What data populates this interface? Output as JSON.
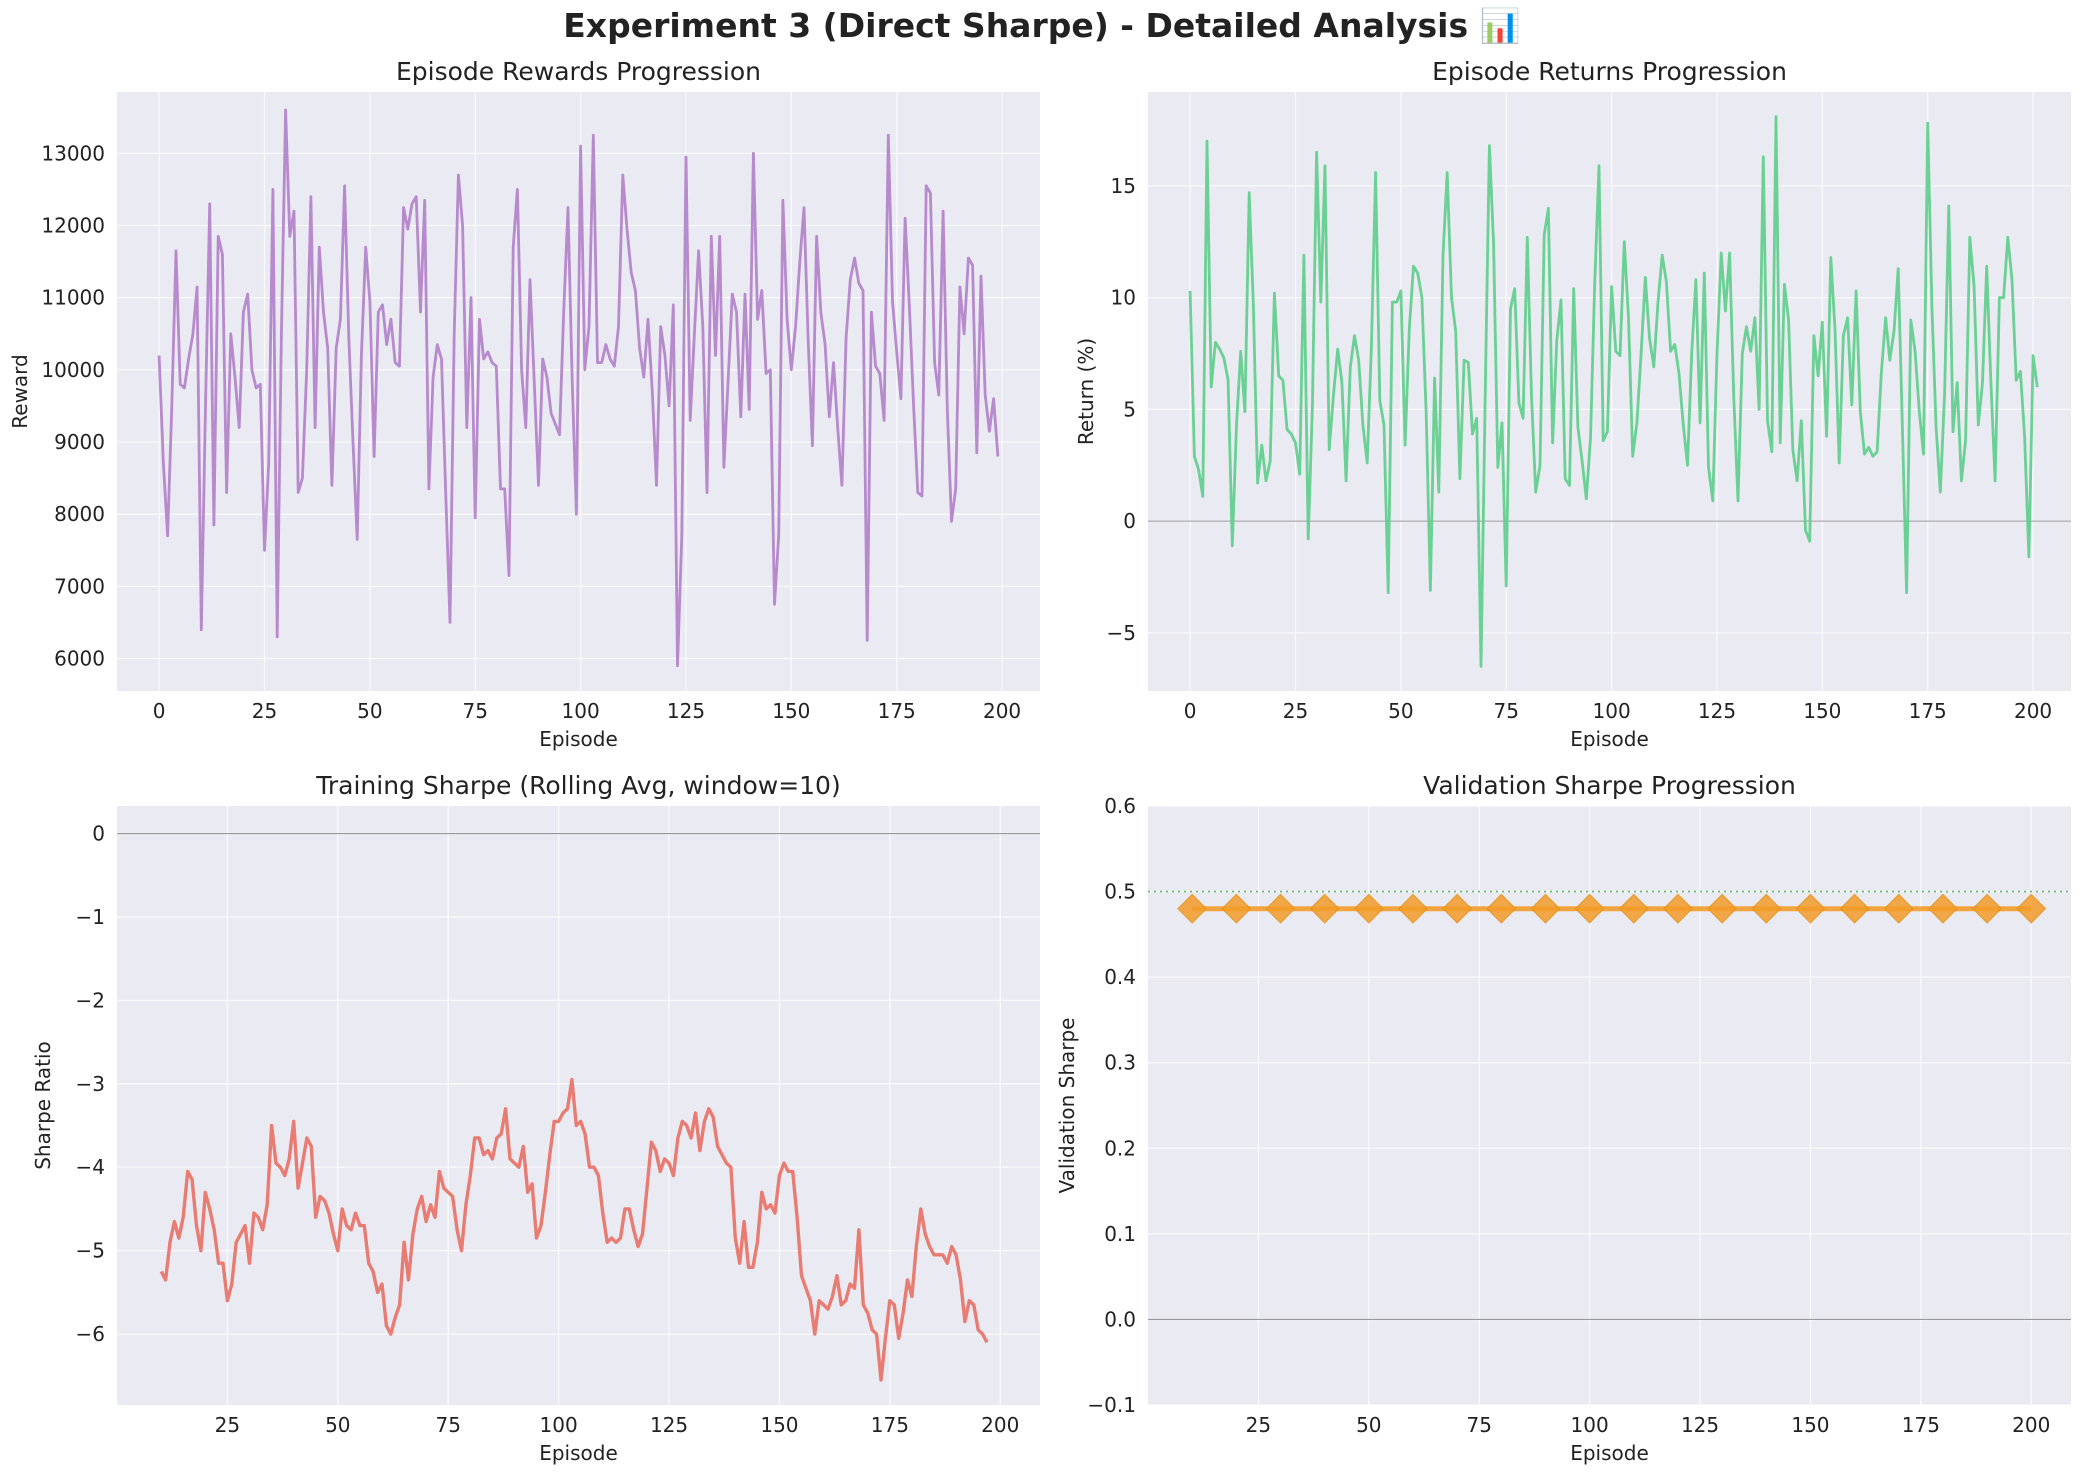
{
  "suptitle": "Experiment 3 (Direct Sharpe) - Detailed Analysis 📊",
  "chart_data": [
    {
      "type": "line",
      "title": "Episode Rewards Progression",
      "xlabel": "Episode",
      "ylabel": "Reward",
      "xlim": [
        -10,
        209
      ],
      "ylim": [
        5550,
        13850
      ],
      "xticks": [
        0,
        25,
        50,
        75,
        100,
        125,
        150,
        175,
        200
      ],
      "yticks": [
        6000,
        7000,
        8000,
        9000,
        10000,
        11000,
        12000,
        13000
      ],
      "grid": true,
      "color": "#b07fc8",
      "series": [
        {
          "x_start": 0,
          "x_step": 1,
          "values": [
            10200,
            8700,
            7700,
            9500,
            11650,
            9800,
            9750,
            10150,
            10500,
            11150,
            6400,
            9500,
            12300,
            7850,
            11850,
            11600,
            8300,
            10500,
            9900,
            9200,
            10800,
            11050,
            10000,
            9750,
            9800,
            7500,
            8700,
            12500,
            6300,
            10500,
            13600,
            11850,
            12200,
            8300,
            8500,
            10000,
            12400,
            9200,
            11700,
            10800,
            10300,
            8400,
            10300,
            10700,
            12550,
            10450,
            9000,
            7650,
            10200,
            11700,
            10950,
            8800,
            10800,
            10900,
            10350,
            10700,
            10100,
            10050,
            12250,
            11950,
            12300,
            12400,
            10800,
            12350,
            8350,
            9900,
            10350,
            10150,
            8300,
            6500,
            10500,
            12700,
            12000,
            9200,
            11000,
            7950,
            10700,
            10150,
            10250,
            10100,
            10050,
            8350,
            8350,
            7150,
            11700,
            12500,
            10000,
            9200,
            11250,
            9850,
            8400,
            10150,
            9900,
            9400,
            9250,
            9100,
            10800,
            12250,
            9850,
            8000,
            13100,
            10000,
            10600,
            13250,
            10100,
            10100,
            10350,
            10150,
            10050,
            10600,
            12700,
            11950,
            11350,
            11100,
            10300,
            9900,
            10700,
            9700,
            8400,
            10600,
            10200,
            9500,
            10900,
            5900,
            7700,
            12950,
            9300,
            10500,
            11650,
            10600,
            8300,
            11850,
            10200,
            11850,
            8650,
            9850,
            11050,
            10800,
            9350,
            11050,
            9450,
            13000,
            10700,
            11100,
            9950,
            10000,
            6750,
            7700,
            12350,
            10700,
            10000,
            10600,
            11500,
            12250,
            10400,
            8950,
            11850,
            10800,
            10350,
            9350,
            10100,
            9200,
            8400,
            10450,
            11250,
            11550,
            11200,
            11100,
            6250,
            10800,
            10050,
            9950,
            9300,
            13250,
            10950,
            10250,
            9600,
            12100,
            10900,
            9500,
            8300,
            8250,
            12550,
            12450,
            10100,
            9650,
            12200,
            9450,
            7900,
            8350,
            11150,
            10500,
            11550,
            11450,
            8850,
            11300,
            9650,
            9150,
            9600,
            8800
          ]
        }
      ]
    },
    {
      "type": "line",
      "title": "Episode Returns Progression",
      "xlabel": "Episode",
      "ylabel": "Return (%)",
      "xlim": [
        -10,
        209
      ],
      "ylim": [
        -7.6,
        19.2
      ],
      "xticks": [
        0,
        25,
        50,
        75,
        100,
        125,
        150,
        175,
        200
      ],
      "yticks": [
        -5,
        0,
        5,
        10,
        15
      ],
      "grid": true,
      "zero_line": true,
      "color": "#5ccd8a",
      "series": [
        {
          "x_start": 0,
          "x_step": 1,
          "values": [
            10.3,
            2.9,
            2.3,
            1.1,
            17.0,
            6.0,
            8.0,
            7.7,
            7.3,
            6.3,
            -1.1,
            4.3,
            7.6,
            4.9,
            14.7,
            9.6,
            1.7,
            3.4,
            1.8,
            2.7,
            10.2,
            6.5,
            6.3,
            4.1,
            3.9,
            3.5,
            2.1,
            11.9,
            -0.8,
            5.1,
            16.5,
            9.8,
            15.9,
            3.2,
            5.6,
            7.7,
            6.2,
            1.8,
            6.9,
            8.3,
            7.2,
            4.3,
            2.6,
            7.8,
            15.6,
            5.4,
            4.3,
            -3.2,
            9.8,
            9.8,
            10.3,
            3.4,
            8.6,
            11.4,
            11.1,
            10.0,
            4.8,
            -3.1,
            6.4,
            1.3,
            11.9,
            15.6,
            10.0,
            8.5,
            1.9,
            7.2,
            7.1,
            3.9,
            4.6,
            -6.5,
            5.6,
            16.8,
            12.4,
            2.4,
            4.4,
            -2.9,
            9.5,
            10.4,
            5.3,
            4.6,
            12.7,
            5.6,
            1.3,
            2.5,
            12.8,
            14.0,
            3.5,
            8.1,
            9.9,
            1.9,
            1.6,
            10.4,
            4.2,
            2.7,
            1.0,
            3.7,
            10.6,
            15.9,
            3.6,
            4.0,
            10.5,
            7.6,
            7.4,
            12.5,
            9.1,
            2.9,
            4.4,
            7.5,
            10.9,
            8.2,
            6.9,
            9.8,
            11.9,
            10.7,
            7.6,
            7.9,
            6.6,
            4.3,
            2.5,
            7.5,
            10.8,
            4.4,
            11.1,
            2.4,
            0.9,
            7.5,
            12.0,
            9.4,
            12.0,
            5.5,
            0.9,
            7.5,
            8.7,
            7.6,
            9.1,
            5.0,
            16.3,
            4.5,
            3.1,
            18.1,
            3.5,
            10.6,
            9.0,
            3.2,
            1.8,
            4.5,
            -0.4,
            -0.9,
            8.3,
            6.5,
            8.9,
            3.8,
            11.8,
            8.6,
            2.6,
            8.3,
            9.1,
            5.2,
            10.3,
            4.9,
            3.0,
            3.3,
            2.9,
            3.1,
            6.6,
            9.1,
            7.2,
            8.5,
            11.3,
            4.2,
            -3.2,
            9.0,
            7.6,
            4.9,
            3.0,
            17.8,
            9.6,
            4.2,
            1.3,
            5.7,
            14.1,
            4.0,
            6.2,
            1.8,
            3.6,
            12.7,
            10.5,
            4.3,
            6.2,
            11.4,
            6.2,
            1.8,
            10.0,
            10.0,
            12.7,
            10.8,
            6.3,
            6.7,
            3.8,
            -1.6,
            7.4,
            6.0
          ]
        }
      ]
    },
    {
      "type": "line",
      "title": "Training Sharpe (Rolling Avg, window=10)",
      "xlabel": "Episode",
      "ylabel": "Sharpe Ratio",
      "xlim": [
        0,
        209
      ],
      "ylim": [
        -6.85,
        0.33
      ],
      "xticks": [
        25,
        50,
        75,
        100,
        125,
        150,
        175,
        200
      ],
      "yticks": [
        -6,
        -5,
        -4,
        -3,
        -2,
        -1,
        0
      ],
      "grid": true,
      "zero_line": true,
      "color": "#e87064",
      "series": [
        {
          "x_start": 10,
          "x_step": 1,
          "values": [
            -5.25,
            -5.35,
            -4.9,
            -4.65,
            -4.85,
            -4.6,
            -4.05,
            -4.15,
            -4.7,
            -5.0,
            -4.3,
            -4.5,
            -4.75,
            -5.15,
            -5.15,
            -5.6,
            -5.4,
            -4.9,
            -4.8,
            -4.7,
            -5.15,
            -4.55,
            -4.6,
            -4.75,
            -4.45,
            -3.5,
            -3.95,
            -4.0,
            -4.1,
            -3.9,
            -3.45,
            -4.25,
            -3.95,
            -3.65,
            -3.75,
            -4.6,
            -4.35,
            -4.4,
            -4.55,
            -4.8,
            -5.0,
            -4.5,
            -4.7,
            -4.75,
            -4.55,
            -4.7,
            -4.7,
            -5.15,
            -5.25,
            -5.5,
            -5.4,
            -5.9,
            -6.0,
            -5.8,
            -5.65,
            -4.9,
            -5.35,
            -4.8,
            -4.5,
            -4.35,
            -4.65,
            -4.45,
            -4.6,
            -4.05,
            -4.25,
            -4.3,
            -4.35,
            -4.75,
            -5.0,
            -4.45,
            -4.1,
            -3.65,
            -3.65,
            -3.85,
            -3.8,
            -3.9,
            -3.65,
            -3.6,
            -3.3,
            -3.9,
            -3.95,
            -4.0,
            -3.75,
            -4.3,
            -4.2,
            -4.85,
            -4.7,
            -4.3,
            -3.85,
            -3.45,
            -3.45,
            -3.35,
            -3.3,
            -2.95,
            -3.5,
            -3.45,
            -3.6,
            -4.0,
            -4.0,
            -4.1,
            -4.55,
            -4.9,
            -4.85,
            -4.9,
            -4.85,
            -4.5,
            -4.5,
            -4.75,
            -4.95,
            -4.8,
            -4.25,
            -3.7,
            -3.8,
            -4.05,
            -3.9,
            -3.95,
            -4.1,
            -3.65,
            -3.45,
            -3.5,
            -3.65,
            -3.35,
            -3.8,
            -3.45,
            -3.3,
            -3.4,
            -3.75,
            -3.85,
            -3.95,
            -4.0,
            -4.85,
            -5.15,
            -4.65,
            -5.2,
            -5.2,
            -4.9,
            -4.3,
            -4.5,
            -4.45,
            -4.55,
            -4.1,
            -3.95,
            -4.05,
            -4.05,
            -4.6,
            -5.3,
            -5.45,
            -5.6,
            -6.0,
            -5.6,
            -5.65,
            -5.7,
            -5.55,
            -5.3,
            -5.65,
            -5.6,
            -5.4,
            -5.45,
            -4.75,
            -5.65,
            -5.75,
            -5.95,
            -6.0,
            -6.55,
            -6.05,
            -5.6,
            -5.65,
            -6.05,
            -5.75,
            -5.35,
            -5.55,
            -4.95,
            -4.5,
            -4.8,
            -4.95,
            -5.05,
            -5.05,
            -5.05,
            -5.15,
            -4.95,
            -5.05,
            -5.35,
            -5.85,
            -5.6,
            -5.65,
            -5.95,
            -6.0,
            -6.1
          ]
        }
      ]
    },
    {
      "type": "line",
      "title": "Validation Sharpe Progression",
      "xlabel": "Episode",
      "ylabel": "Validation Sharpe",
      "xlim": [
        0,
        209
      ],
      "ylim": [
        -0.1,
        0.6
      ],
      "xticks": [
        25,
        50,
        75,
        100,
        125,
        150,
        175,
        200
      ],
      "yticks": [
        -0.1,
        0.0,
        0.1,
        0.2,
        0.3,
        0.4,
        0.5,
        0.6
      ],
      "ytick_labels": [
        "−0.1",
        "0.0",
        "0.1",
        "0.2",
        "0.3",
        "0.4",
        "0.5",
        "0.6"
      ],
      "grid": true,
      "zero_line": true,
      "reference_line": 0.5,
      "reference_line_color": "#5cbf6e",
      "color": "#f39c2a",
      "marker": "diamond",
      "series": [
        {
          "x": [
            10,
            20,
            30,
            40,
            50,
            60,
            70,
            80,
            90,
            100,
            110,
            120,
            130,
            140,
            150,
            160,
            170,
            180,
            190,
            200
          ],
          "values": [
            0.48,
            0.48,
            0.48,
            0.48,
            0.48,
            0.48,
            0.48,
            0.48,
            0.48,
            0.48,
            0.48,
            0.48,
            0.48,
            0.48,
            0.48,
            0.48,
            0.48,
            0.48,
            0.48,
            0.48
          ]
        }
      ]
    }
  ]
}
